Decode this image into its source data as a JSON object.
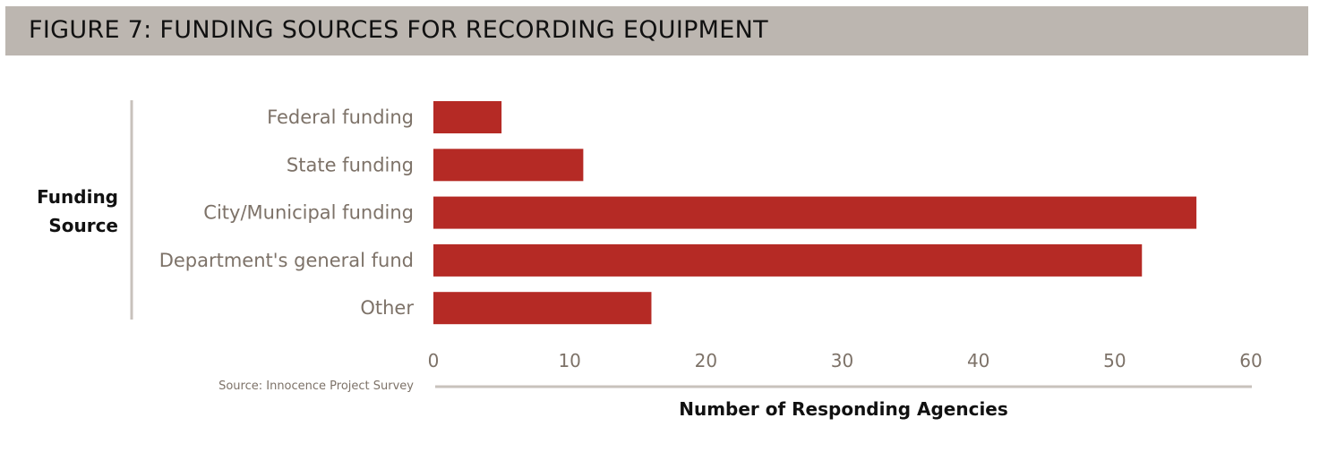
{
  "chart_data": {
    "type": "bar",
    "orientation": "horizontal",
    "title": "FIGURE 7: FUNDING SOURCES FOR RECORDING EQUIPMENT",
    "categories": [
      "Federal funding",
      "State funding",
      "City/Municipal funding",
      "Department's general fund",
      "Other"
    ],
    "values": [
      5,
      11,
      56,
      52,
      16
    ],
    "xlabel": "Number of Responding Agencies",
    "ylabel_lines": [
      "Funding",
      "Source"
    ],
    "xlim": [
      0,
      60
    ],
    "xticks": [
      0,
      10,
      20,
      30,
      40,
      50,
      60
    ],
    "source": "Source: Innocence Project Survey",
    "bar_color": "#b52a25",
    "label_color": "#7d7268",
    "axis_color": "#c8c2bc",
    "title_band_color": "#bcb6b0",
    "grid": false,
    "legend": "none"
  }
}
